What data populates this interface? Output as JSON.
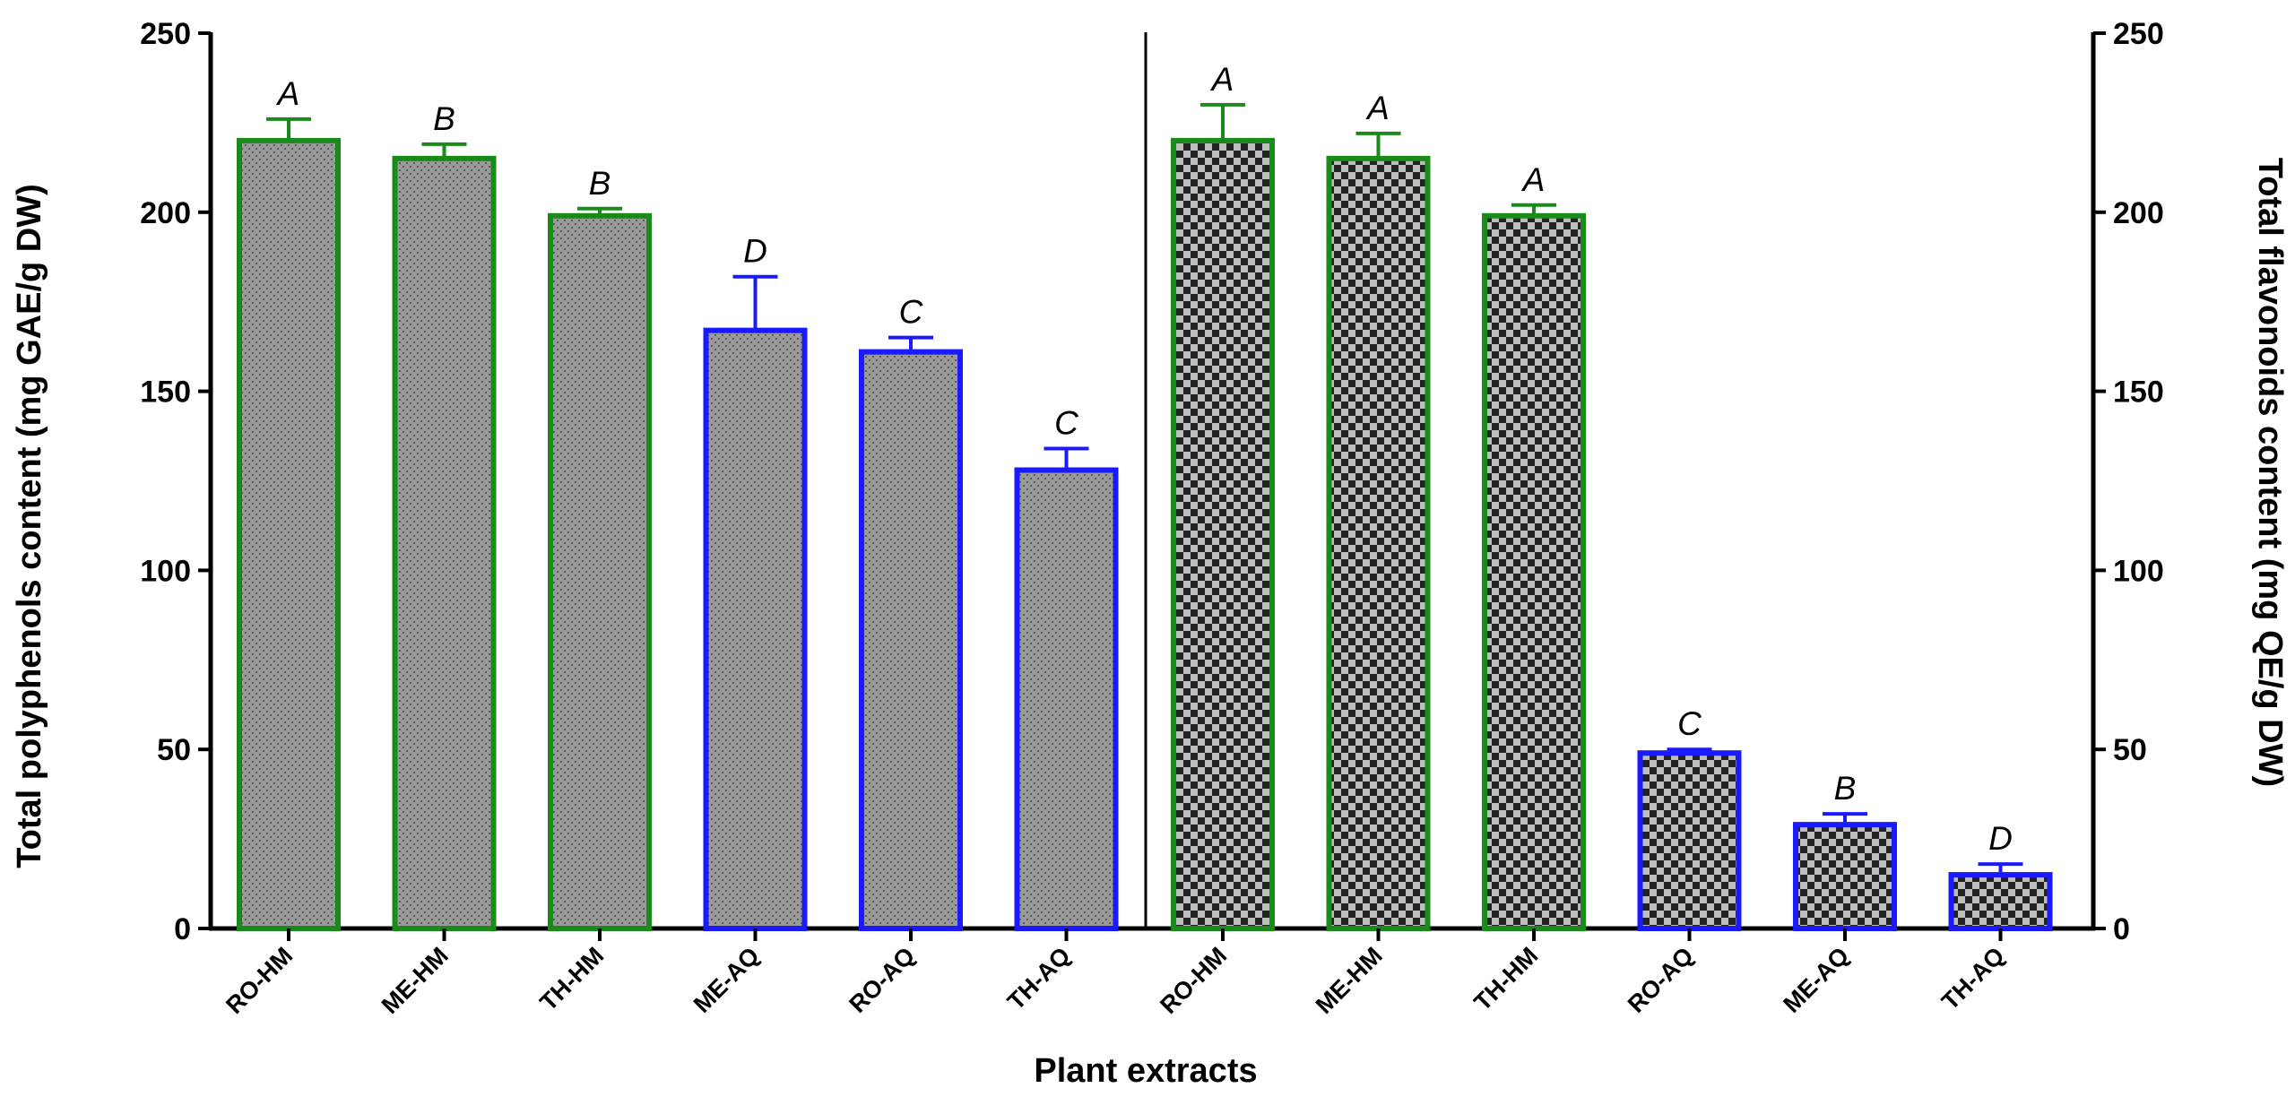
{
  "chart_data": {
    "type": "bar",
    "xlabel": "Plant extracts",
    "colors": {
      "green": "#1a8a1a",
      "blue": "#1a1aff",
      "bar_fill": "#9a9a9a",
      "axis": "#000000"
    },
    "left_panel": {
      "ylabel": "Total polyphenols content (mg GAE/g DW)",
      "ylim": [
        0,
        250
      ],
      "yticks": [
        "0",
        "50",
        "100",
        "150",
        "200",
        "250"
      ],
      "pattern": "dotted-gray",
      "categories": [
        "RO-HM",
        "ME-HM",
        "TH-HM",
        "ME-AQ",
        "RO-AQ",
        "TH-AQ"
      ],
      "values": [
        220,
        215,
        199,
        167,
        161,
        128
      ],
      "errors": [
        6,
        4,
        2,
        15,
        4,
        6
      ],
      "significance": [
        "A",
        "B",
        "B",
        "D",
        "C",
        "C"
      ],
      "border": [
        "green",
        "green",
        "green",
        "blue",
        "blue",
        "blue"
      ]
    },
    "right_panel": {
      "ylabel": "Total flavonoids content (mg QE/g DW)",
      "ylim": [
        0,
        250
      ],
      "yticks": [
        "0",
        "50",
        "100",
        "150",
        "200",
        "250"
      ],
      "pattern": "checkerboard",
      "categories": [
        "RO-HM",
        "ME-HM",
        "TH-HM",
        "RO-AQ",
        "ME-AQ",
        "TH-AQ"
      ],
      "values": [
        220,
        215,
        199,
        49,
        29,
        15
      ],
      "errors": [
        10,
        7,
        3,
        1,
        3,
        3
      ],
      "significance": [
        "A",
        "A",
        "A",
        "C",
        "B",
        "D"
      ],
      "border": [
        "green",
        "green",
        "green",
        "blue",
        "blue",
        "blue"
      ]
    }
  }
}
